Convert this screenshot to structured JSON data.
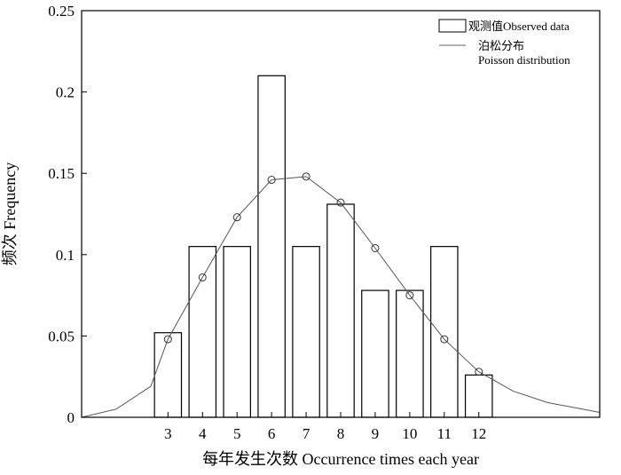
{
  "chart_data": {
    "type": "bar",
    "xlabel": "每年发生次数 Occurrence times each year",
    "ylabel": "频次 Frequency",
    "ylim": [
      0,
      0.25
    ],
    "y_ticks": [
      "0",
      "0.05",
      "0.1",
      "0.15",
      "0.2",
      "0.25"
    ],
    "x_range": [
      0.5,
      15.5
    ],
    "categories": [
      "3",
      "4",
      "5",
      "6",
      "7",
      "8",
      "9",
      "10",
      "11",
      "12"
    ],
    "x_values": [
      3,
      4,
      5,
      6,
      7,
      8,
      9,
      10,
      11,
      12
    ],
    "series": [
      {
        "name": "观测值Observed data",
        "type": "bar",
        "values": [
          0.052,
          0.105,
          0.105,
          0.21,
          0.105,
          0.131,
          0.078,
          0.078,
          0.105,
          0.026
        ]
      },
      {
        "name": "泊松分布",
        "name_line2": "Poisson distribution",
        "type": "line",
        "x": [
          0.5,
          1.5,
          2.5,
          3,
          4,
          5,
          6,
          7,
          8,
          9,
          10,
          11,
          12,
          13,
          14,
          15,
          15.5
        ],
        "values": [
          0.0,
          0.005,
          0.019,
          0.048,
          0.086,
          0.123,
          0.146,
          0.148,
          0.132,
          0.104,
          0.075,
          0.048,
          0.028,
          0.016,
          0.009,
          0.005,
          0.003
        ],
        "markers_x": [
          3,
          4,
          5,
          6,
          7,
          8,
          9,
          10,
          11,
          12
        ]
      }
    ],
    "legend": {
      "position": "top-right"
    },
    "grid": false
  }
}
